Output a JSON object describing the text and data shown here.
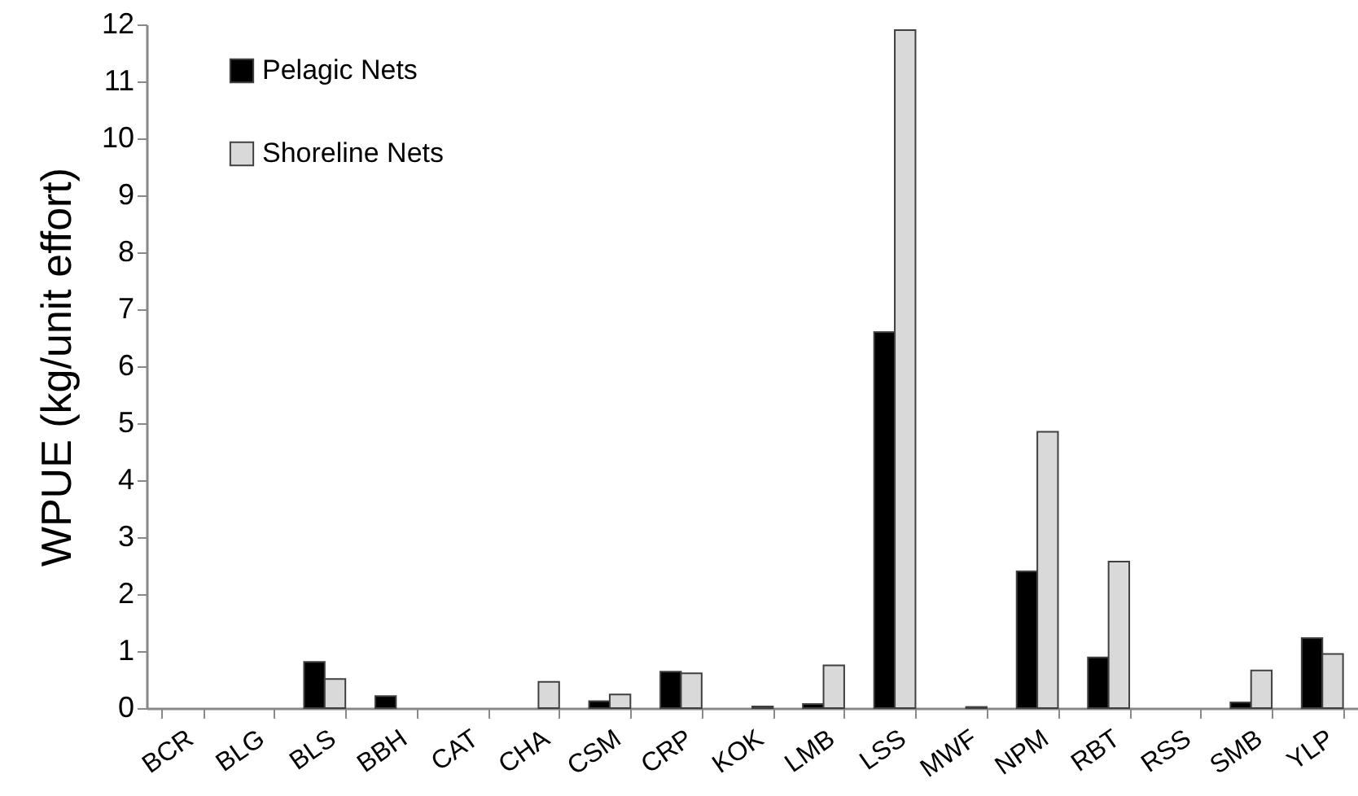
{
  "chart_data": {
    "type": "bar",
    "ylabel": "WPUE (kg/unit  effort)",
    "categories": [
      "BCR",
      "BLG",
      "BLS",
      "BBH",
      "CAT",
      "CHA",
      "CSM",
      "CRP",
      "KOK",
      "LMB",
      "LSS",
      "MWF",
      "NPM",
      "RBT",
      "RSS",
      "SMB",
      "YLP"
    ],
    "series": [
      {
        "name": "Pelagic Nets",
        "color": "#000000",
        "values": [
          0,
          0,
          0.81,
          0.21,
          0,
          0,
          0.12,
          0.64,
          0,
          0.07,
          6.6,
          0,
          2.4,
          0.89,
          0,
          0.1,
          1.23
        ]
      },
      {
        "name": "Shoreline Nets",
        "color": "#d9d9d9",
        "values": [
          0,
          0,
          0.51,
          0,
          0,
          0.46,
          0.24,
          0.61,
          0.03,
          0.75,
          11.9,
          0.02,
          4.85,
          2.57,
          0,
          0.66,
          0.95
        ]
      }
    ],
    "ylim": [
      0,
      12
    ],
    "yticks": [
      0,
      1,
      2,
      3,
      4,
      5,
      6,
      7,
      8,
      9,
      10,
      11,
      12
    ],
    "grid": false,
    "legend": "top left"
  }
}
